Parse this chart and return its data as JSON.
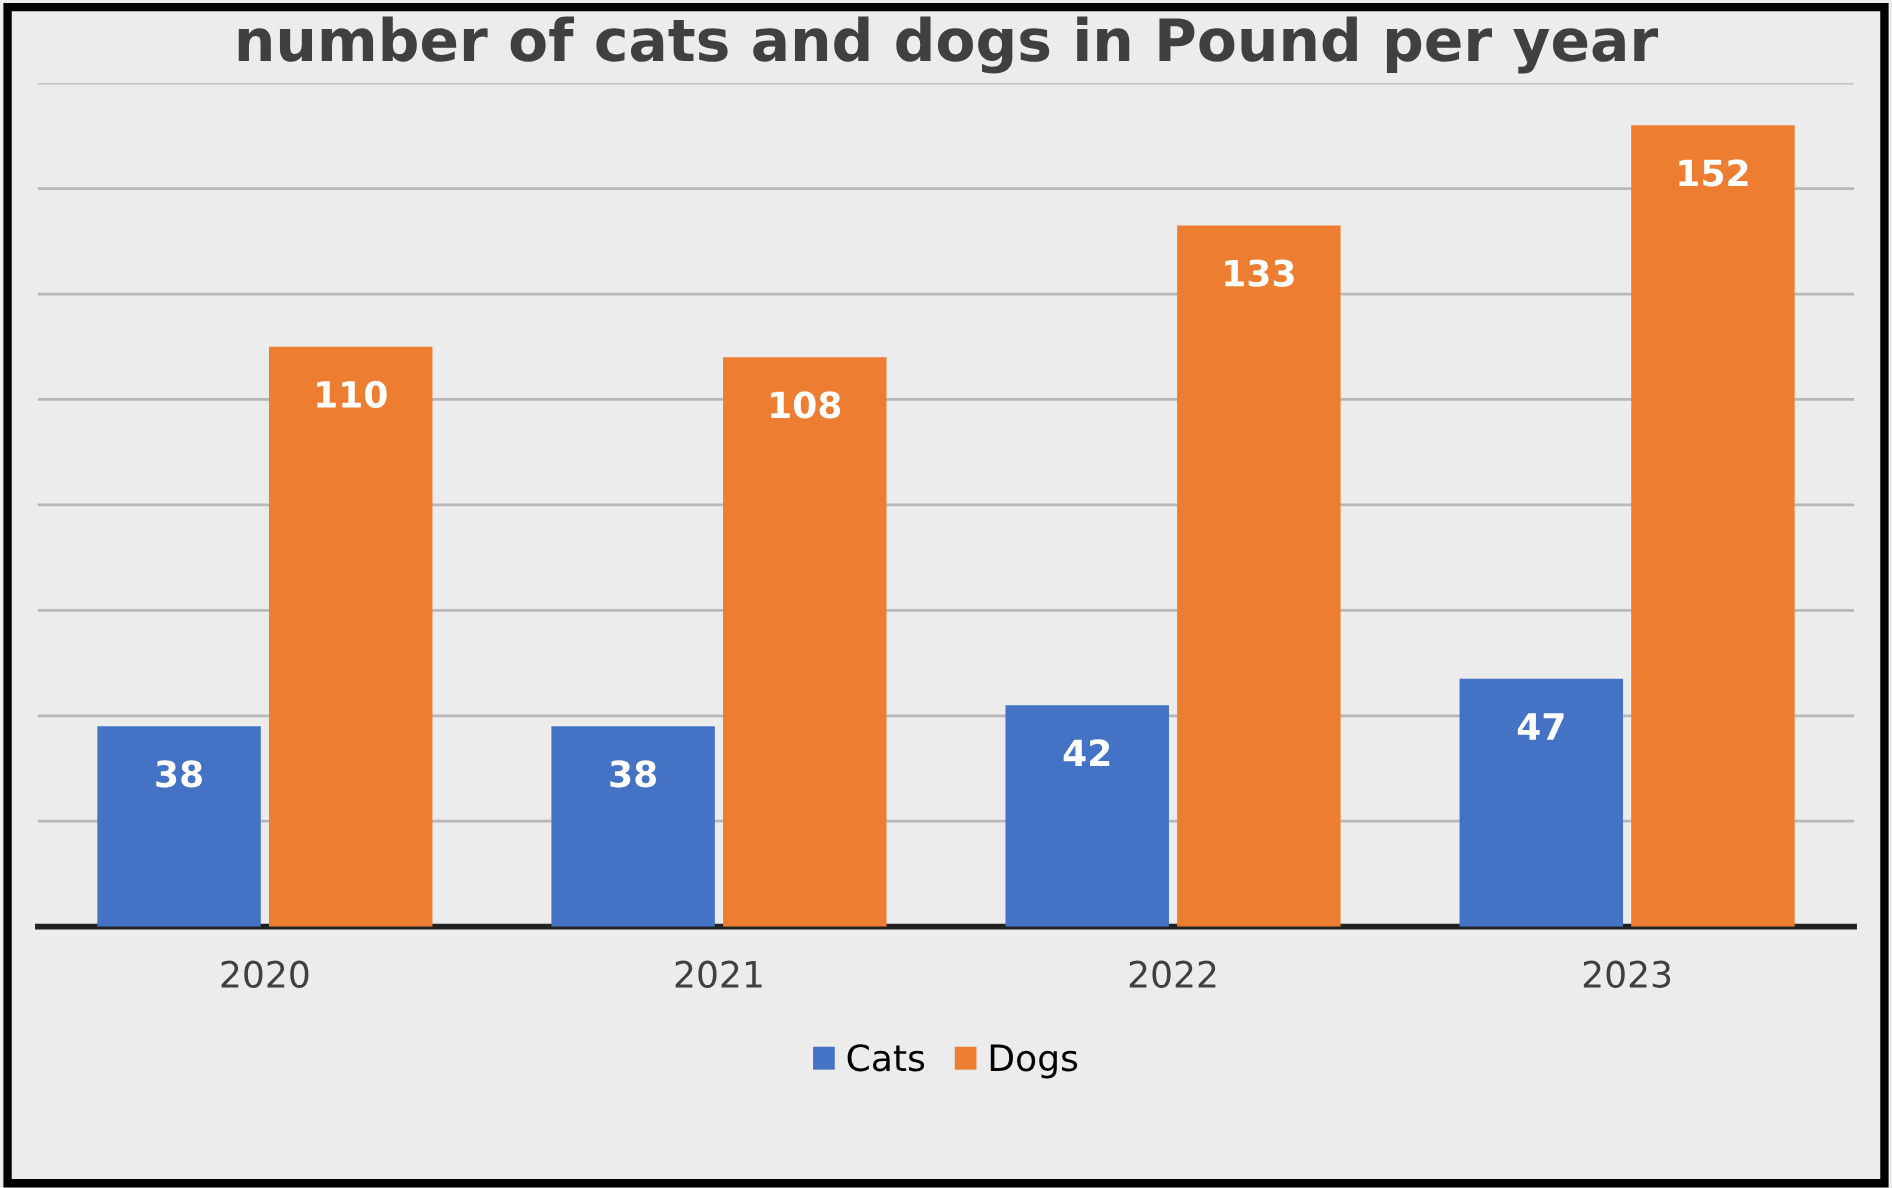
{
  "chart_data": {
    "type": "bar",
    "title": "number of cats and dogs in Pound per year",
    "categories": [
      "2020",
      "2021",
      "2022",
      "2023"
    ],
    "series": [
      {
        "name": "Cats",
        "color": "#4472c4",
        "values": [
          38,
          38,
          42,
          47
        ]
      },
      {
        "name": "Dogs",
        "color": "#ed7d31",
        "values": [
          110,
          108,
          133,
          152
        ]
      }
    ],
    "ylim": [
      0,
      160
    ],
    "yticks": [
      {
        "value": 0,
        "label": null
      },
      {
        "value": 20,
        "label": null
      },
      {
        "value": 40,
        "label": null
      },
      {
        "value": 60,
        "label": null
      },
      {
        "value": 80,
        "label": null
      },
      {
        "value": 100,
        "label": null
      },
      {
        "value": 120,
        "label": null
      },
      {
        "value": 140,
        "label": null
      },
      {
        "value": 160,
        "label": null
      }
    ],
    "tick_labels": "x",
    "grid": "y",
    "legend": "bottom",
    "data_labels": true
  }
}
